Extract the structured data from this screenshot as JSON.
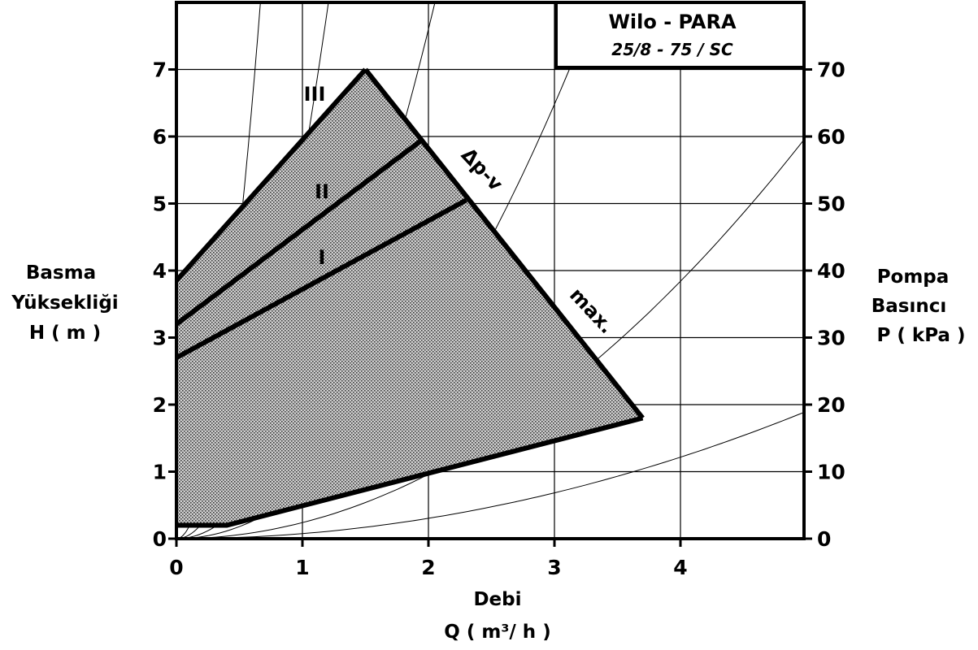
{
  "chart_data": {
    "type": "area",
    "title": "Wilo - PARA",
    "subtitle": "25/8 - 75 / SC",
    "xlabel": "Debi",
    "xlabel_unit": "Q ( m³/ h )",
    "ylabel_left": [
      "Basma",
      "Yüksekliği",
      "H ( m )"
    ],
    "ylabel_right": [
      "Pompa",
      "Basıncı",
      "P ( kPa )"
    ],
    "xlim": [
      0,
      5
    ],
    "ylim": [
      0,
      8
    ],
    "ylim_right": [
      0,
      80
    ],
    "x_ticks": [
      "0",
      "1",
      "2",
      "3",
      "4"
    ],
    "y_ticks": [
      "0",
      "1",
      "2",
      "3",
      "4",
      "5",
      "6",
      "7"
    ],
    "y_ticks_right": [
      "0",
      "10",
      "20",
      "30",
      "40",
      "50",
      "60",
      "70"
    ],
    "grid": true,
    "operating_region": {
      "x": [
        0,
        0,
        1.5,
        3.7,
        0.4,
        0
      ],
      "y": [
        0.2,
        3.85,
        7.0,
        1.8,
        0.2,
        0.2
      ]
    },
    "series": [
      {
        "name": "III",
        "x": [
          0,
          1.5
        ],
        "y": [
          3.85,
          7.0
        ]
      },
      {
        "name": "II",
        "x": [
          0,
          1.95
        ],
        "y": [
          3.2,
          5.95
        ]
      },
      {
        "name": "I",
        "x": [
          0,
          2.3
        ],
        "y": [
          2.7,
          5.05
        ]
      },
      {
        "name": "Δp-v",
        "x": [
          1.5,
          3.7
        ],
        "y": [
          7.0,
          1.8
        ]
      },
      {
        "name": "max.",
        "x": [
          0,
          0.4,
          3.7
        ],
        "y": [
          0.2,
          0.2,
          1.8
        ]
      }
    ],
    "system_curves": [
      {
        "k": 18.0
      },
      {
        "k": 5.5
      },
      {
        "k": 1.9
      },
      {
        "k": 0.72
      },
      {
        "k": 0.24
      },
      {
        "k": 0.076
      }
    ],
    "colors": {
      "fill": "#9a9a9a",
      "lines": "#000000",
      "background": "#ffffff"
    }
  }
}
